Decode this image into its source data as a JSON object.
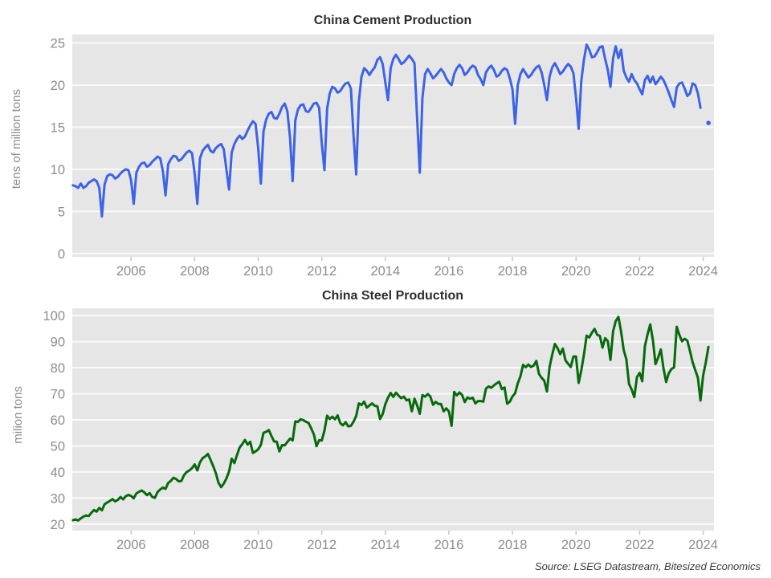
{
  "meta": {
    "source_note": "Source: LSEG Datastream, Bitesized Economics"
  },
  "colors": {
    "page_bg": "#ffffff",
    "plot_bg": "#e6e6e6",
    "grid_line": "#fafafa",
    "tick_mark": "#c4c4c4",
    "tick_label": "#8c8c8c",
    "axis_label": "#8c8c8c",
    "title_text": "#2d2d2d",
    "source_text": "#3a3a3a",
    "cement_line": "#3d63e6",
    "steel_line": "#076a0c"
  },
  "chart_data": [
    {
      "type": "line",
      "title": "China Cement Production",
      "ylabel": "tens of million tons",
      "xlabel": "",
      "legend": "none",
      "grid": "horizontal",
      "x_start": 2004.1667,
      "x_step_years": 0.0833333,
      "xlim": [
        2004.15,
        2024.34
      ],
      "ylim": [
        -0.4,
        26.0
      ],
      "x_ticks": [
        2006,
        2008,
        2010,
        2012,
        2014,
        2016,
        2018,
        2020,
        2022,
        2024
      ],
      "y_ticks": [
        0,
        5,
        10,
        15,
        20,
        25
      ],
      "values": [
        8.1,
        8.0,
        7.8,
        8.3,
        7.8,
        8.0,
        8.4,
        8.6,
        8.8,
        8.6,
        7.8,
        4.4,
        8.2,
        9.2,
        9.4,
        9.3,
        8.9,
        9.1,
        9.5,
        9.8,
        10.0,
        9.9,
        8.7,
        5.9,
        9.6,
        10.3,
        10.7,
        10.8,
        10.3,
        10.5,
        10.9,
        11.2,
        11.5,
        11.3,
        9.8,
        6.9,
        10.6,
        11.2,
        11.6,
        11.5,
        11.0,
        11.2,
        11.6,
        12.0,
        12.2,
        11.9,
        9.5,
        5.9,
        11.3,
        12.2,
        12.6,
        12.9,
        12.2,
        12.0,
        12.5,
        12.8,
        13.0,
        12.4,
        10.0,
        7.6,
        12.0,
        13.0,
        13.6,
        14.0,
        13.6,
        13.9,
        14.6,
        15.2,
        15.7,
        15.4,
        12.5,
        8.3,
        14.5,
        15.9,
        16.6,
        16.8,
        16.1,
        16.0,
        16.6,
        17.4,
        17.8,
        16.9,
        13.8,
        8.6,
        15.8,
        17.1,
        17.6,
        17.7,
        16.9,
        16.8,
        17.3,
        17.8,
        17.9,
        17.3,
        13.0,
        9.9,
        17.2,
        19.0,
        19.8,
        19.6,
        19.1,
        19.3,
        19.8,
        20.2,
        20.3,
        19.6,
        14.0,
        9.4,
        18.0,
        21.0,
        22.0,
        21.7,
        21.2,
        21.7,
        22.1,
        23.0,
        23.3,
        22.5,
        20.3,
        18.2,
        22.0,
        23.1,
        23.6,
        23.1,
        22.5,
        22.7,
        23.1,
        23.5,
        23.1,
        22.6,
        16.0,
        9.6,
        18.5,
        21.3,
        21.9,
        21.4,
        20.8,
        21.1,
        21.5,
        21.9,
        21.5,
        20.8,
        20.3,
        20.0,
        21.3,
        22.0,
        22.4,
        22.0,
        21.2,
        21.5,
        22.0,
        22.3,
        22.1,
        21.2,
        20.7,
        20.0,
        21.5,
        22.0,
        22.3,
        21.8,
        21.0,
        21.2,
        21.7,
        22.0,
        21.8,
        20.8,
        19.5,
        15.4,
        20.0,
        21.3,
        21.9,
        21.4,
        20.9,
        21.2,
        21.7,
        22.1,
        22.3,
        21.5,
        20.0,
        18.2,
        21.0,
        22.1,
        22.6,
        22.0,
        21.3,
        21.6,
        22.1,
        22.5,
        22.2,
        21.4,
        18.5,
        14.8,
        20.5,
        23.0,
        24.8,
        24.2,
        23.3,
        23.4,
        23.9,
        24.5,
        24.6,
        23.1,
        21.8,
        19.8,
        23.2,
        24.6,
        23.2,
        24.2,
        21.7,
        20.9,
        20.4,
        21.3,
        20.6,
        20.2,
        19.5,
        18.9,
        20.6,
        21.1,
        20.3,
        21.0,
        20.1,
        20.5,
        21.0,
        20.6,
        19.9,
        19.1,
        18.2,
        17.4,
        19.7,
        20.2,
        20.3,
        19.6,
        18.7,
        19.0,
        20.2,
        20.0,
        19.0,
        17.3,
        null,
        null,
        15.5
      ]
    },
    {
      "type": "line",
      "title": "China Steel Production",
      "ylabel": "milion tons",
      "xlabel": "",
      "legend": "none",
      "grid": "horizontal",
      "x_start": 2004.1667,
      "x_step_years": 0.0833333,
      "xlim": [
        2004.15,
        2024.34
      ],
      "ylim": [
        17.5,
        102.8
      ],
      "x_ticks": [
        2006,
        2008,
        2010,
        2012,
        2014,
        2016,
        2018,
        2020,
        2022,
        2024
      ],
      "y_ticks": [
        20,
        30,
        40,
        50,
        60,
        70,
        80,
        90,
        100
      ],
      "values": [
        21.5,
        21.8,
        21.4,
        22.2,
        22.9,
        23.3,
        23.1,
        24.3,
        25.4,
        24.8,
        26.2,
        25.3,
        27.6,
        28.3,
        28.9,
        29.6,
        28.7,
        29.3,
        30.4,
        29.5,
        30.7,
        31.2,
        30.8,
        29.9,
        31.8,
        32.4,
        32.9,
        32.2,
        31.1,
        31.9,
        30.4,
        30.1,
        32.3,
        33.3,
        34.0,
        33.5,
        35.8,
        36.6,
        37.8,
        37.3,
        36.4,
        36.6,
        38.8,
        40.0,
        40.6,
        41.5,
        42.9,
        40.6,
        43.7,
        45.3,
        46.0,
        46.9,
        44.7,
        42.3,
        39.6,
        35.9,
        34.2,
        35.5,
        37.5,
        40.2,
        45.1,
        43.4,
        46.5,
        49.4,
        50.7,
        52.3,
        50.5,
        51.6,
        47.3,
        47.9,
        48.7,
        50.4,
        55.0,
        55.4,
        56.1,
        53.8,
        51.7,
        51.6,
        47.9,
        50.3,
        50.2,
        51.5,
        52.8,
        52.1,
        59.4,
        59.2,
        60.2,
        59.9,
        59.3,
        58.8,
        56.7,
        54.4,
        49.9,
        52.2,
        52.1,
        55.9,
        61.6,
        60.3,
        61.2,
        60.2,
        61.7,
        58.7,
        57.9,
        59.1,
        57.5,
        57.7,
        59.3,
        61.5,
        66.3,
        65.7,
        67.0,
        64.7,
        65.5,
        66.3,
        65.4,
        65.2,
        60.3,
        62.2,
        66.0,
        68.5,
        70.3,
        68.8,
        70.4,
        69.3,
        68.3,
        68.9,
        67.5,
        67.8,
        63.3,
        68.1,
        65.5,
        62.3,
        69.5,
        68.9,
        69.9,
        68.9,
        65.8,
        66.9,
        66.1,
        66.1,
        63.3,
        64.4,
        63.2,
        57.7,
        70.7,
        69.4,
        70.5,
        69.5,
        66.8,
        68.6,
        68.1,
        68.5,
        66.3,
        67.2,
        67.2,
        67.0,
        72.0,
        72.8,
        72.3,
        73.2,
        74.0,
        74.6,
        71.8,
        72.4,
        66.2,
        67.0,
        69.0,
        70.2,
        74.0,
        76.7,
        81.1,
        80.2,
        81.2,
        80.3,
        80.8,
        82.6,
        77.6,
        76.1,
        75.0,
        70.9,
        80.3,
        85.0,
        89.1,
        87.5,
        85.2,
        87.3,
        82.8,
        81.5,
        80.3,
        84.3,
        84.3,
        74.2,
        79.0,
        85.0,
        92.3,
        91.6,
        93.4,
        94.9,
        92.6,
        92.2,
        87.7,
        91.3,
        90.2,
        83.0,
        94.0,
        97.9,
        99.5,
        93.9,
        86.8,
        83.2,
        73.8,
        71.6,
        68.7,
        76.4,
        78.0,
        74.8,
        88.3,
        92.8,
        96.6,
        90.7,
        81.4,
        83.9,
        87.0,
        79.8,
        74.5,
        77.9,
        79.5,
        80.1,
        95.7,
        92.6,
        90.1,
        91.1,
        90.4,
        86.4,
        82.1,
        79.1,
        76.1,
        67.4,
        77.0,
        82.0,
        88.0
      ]
    }
  ]
}
